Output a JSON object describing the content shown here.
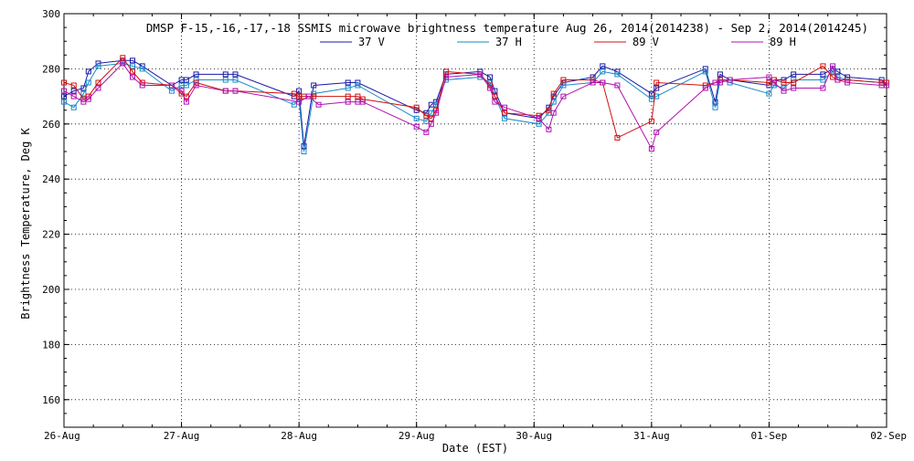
{
  "chart_data": {
    "type": "line",
    "title": "DMSP F-15,-16,-17,-18 SSMIS microwave brightness temperature Aug 26, 2014(2014238) - Sep  2, 2014(2014245)",
    "xlabel": "Date (EST)",
    "ylabel": "Brightness Temperature, Deg K",
    "xlim": [
      "2014-08-26T00:00",
      "2014-09-02T00:00"
    ],
    "ylim": [
      150,
      300
    ],
    "x_ticks": [
      "26-Aug",
      "27-Aug",
      "28-Aug",
      "29-Aug",
      "30-Aug",
      "31-Aug",
      "01-Sep",
      "02-Sep"
    ],
    "y_ticks": [
      160,
      180,
      200,
      220,
      240,
      260,
      280,
      300
    ],
    "grid": "dotted",
    "legend_position": "top-center",
    "series": [
      {
        "name": "37 V",
        "color": "#1a1aa6",
        "x": [
          "2014-08-26T00:00",
          "2014-08-26T02:00",
          "2014-08-26T04:00",
          "2014-08-26T05:00",
          "2014-08-26T07:00",
          "2014-08-26T12:00",
          "2014-08-26T14:00",
          "2014-08-26T16:00",
          "2014-08-26T22:00",
          "2014-08-27T00:00",
          "2014-08-27T01:00",
          "2014-08-27T03:00",
          "2014-08-27T09:00",
          "2014-08-27T11:00",
          "2014-08-27T23:00",
          "2014-08-28T00:00",
          "2014-08-28T01:00",
          "2014-08-28T03:00",
          "2014-08-28T10:00",
          "2014-08-28T12:00",
          "2014-08-29T00:00",
          "2014-08-29T02:00",
          "2014-08-29T03:00",
          "2014-08-29T04:00",
          "2014-08-29T06:00",
          "2014-08-29T13:00",
          "2014-08-29T15:00",
          "2014-08-29T16:00",
          "2014-08-29T18:00",
          "2014-08-30T01:00",
          "2014-08-30T03:00",
          "2014-08-30T04:00",
          "2014-08-30T06:00",
          "2014-08-30T12:00",
          "2014-08-30T14:00",
          "2014-08-30T17:00",
          "2014-08-31T00:00",
          "2014-08-31T01:00",
          "2014-08-31T11:00",
          "2014-08-31T13:00",
          "2014-08-31T14:00",
          "2014-08-31T16:00",
          "2014-09-01T00:00",
          "2014-09-01T01:00",
          "2014-09-01T03:00",
          "2014-09-01T05:00",
          "2014-09-01T11:00",
          "2014-09-01T13:00",
          "2014-09-01T14:00",
          "2014-09-01T16:00",
          "2014-09-01T23:00",
          "2014-09-02T00:00"
        ],
        "y": [
          270,
          272,
          273,
          279,
          282,
          283,
          283,
          281,
          274,
          276,
          276,
          278,
          278,
          278,
          270,
          272,
          252,
          274,
          275,
          275,
          265,
          264,
          267,
          268,
          278,
          279,
          277,
          272,
          264,
          262,
          266,
          270,
          275,
          277,
          281,
          279,
          271,
          273,
          280,
          268,
          278,
          276,
          274,
          276,
          276,
          278,
          278,
          280,
          279,
          277,
          276,
          274
        ]
      },
      {
        "name": "37 H",
        "color": "#1a8ac8",
        "x": [
          "2014-08-26T00:00",
          "2014-08-26T02:00",
          "2014-08-26T04:00",
          "2014-08-26T05:00",
          "2014-08-26T07:00",
          "2014-08-26T12:00",
          "2014-08-26T14:00",
          "2014-08-26T16:00",
          "2014-08-26T22:00",
          "2014-08-27T00:00",
          "2014-08-27T01:00",
          "2014-08-27T03:00",
          "2014-08-27T09:00",
          "2014-08-27T11:00",
          "2014-08-27T23:00",
          "2014-08-28T00:00",
          "2014-08-28T01:00",
          "2014-08-28T03:00",
          "2014-08-28T10:00",
          "2014-08-28T12:00",
          "2014-08-29T00:00",
          "2014-08-29T02:00",
          "2014-08-29T03:00",
          "2014-08-29T04:00",
          "2014-08-29T06:00",
          "2014-08-29T13:00",
          "2014-08-29T15:00",
          "2014-08-29T16:00",
          "2014-08-29T18:00",
          "2014-08-30T01:00",
          "2014-08-30T03:00",
          "2014-08-30T04:00",
          "2014-08-30T06:00",
          "2014-08-30T12:00",
          "2014-08-30T14:00",
          "2014-08-30T17:00",
          "2014-08-31T00:00",
          "2014-08-31T01:00",
          "2014-08-31T11:00",
          "2014-08-31T13:00",
          "2014-08-31T14:00",
          "2014-08-31T16:00",
          "2014-09-01T00:00",
          "2014-09-01T01:00",
          "2014-09-01T03:00",
          "2014-09-01T05:00",
          "2014-09-01T11:00",
          "2014-09-01T13:00",
          "2014-09-01T14:00",
          "2014-09-01T16:00",
          "2014-09-01T23:00",
          "2014-09-02T00:00"
        ],
        "y": [
          268,
          266,
          271,
          275,
          281,
          282,
          281,
          280,
          272,
          274,
          274,
          276,
          276,
          276,
          267,
          269,
          250,
          271,
          273,
          274,
          262,
          261,
          264,
          267,
          276,
          277,
          275,
          270,
          262,
          260,
          264,
          268,
          274,
          275,
          279,
          278,
          269,
          270,
          279,
          266,
          276,
          275,
          271,
          274,
          273,
          276,
          276,
          279,
          277,
          276,
          275,
          274
        ]
      },
      {
        "name": "89 V",
        "color": "#d01010",
        "x": [
          "2014-08-26T00:00",
          "2014-08-26T02:00",
          "2014-08-26T04:00",
          "2014-08-26T05:00",
          "2014-08-26T07:00",
          "2014-08-26T12:00",
          "2014-08-26T14:00",
          "2014-08-26T16:00",
          "2014-08-26T22:00",
          "2014-08-27T00:00",
          "2014-08-27T01:00",
          "2014-08-27T03:00",
          "2014-08-27T09:00",
          "2014-08-27T11:00",
          "2014-08-27T23:00",
          "2014-08-28T00:00",
          "2014-08-28T01:00",
          "2014-08-28T03:00",
          "2014-08-28T10:00",
          "2014-08-28T12:00",
          "2014-08-28T13:00",
          "2014-08-29T00:00",
          "2014-08-29T02:00",
          "2014-08-29T03:00",
          "2014-08-29T04:00",
          "2014-08-29T06:00",
          "2014-08-29T13:00",
          "2014-08-29T15:00",
          "2014-08-29T16:00",
          "2014-08-29T18:00",
          "2014-08-30T01:00",
          "2014-08-30T03:00",
          "2014-08-30T04:00",
          "2014-08-30T06:00",
          "2014-08-30T12:00",
          "2014-08-30T14:00",
          "2014-08-30T17:00",
          "2014-08-31T00:00",
          "2014-08-31T01:00",
          "2014-08-31T11:00",
          "2014-08-31T13:00",
          "2014-08-31T14:00",
          "2014-08-31T16:00",
          "2014-09-01T00:00",
          "2014-09-01T01:00",
          "2014-09-01T03:00",
          "2014-09-01T05:00",
          "2014-09-01T11:00",
          "2014-09-01T13:00",
          "2014-09-01T14:00",
          "2014-09-01T16:00",
          "2014-09-01T23:00",
          "2014-09-02T00:00"
        ],
        "y": [
          275,
          274,
          269,
          270,
          275,
          284,
          279,
          275,
          274,
          271,
          270,
          275,
          272,
          272,
          271,
          270,
          270,
          270,
          270,
          270,
          269,
          266,
          263,
          262,
          265,
          279,
          278,
          274,
          270,
          264,
          263,
          265,
          271,
          276,
          276,
          275,
          255,
          261,
          275,
          274,
          275,
          276,
          276,
          275,
          276,
          275,
          275,
          281,
          277,
          276,
          276,
          275,
          275
        ]
      },
      {
        "name": "89 H",
        "color": "#b010b0",
        "x": [
          "2014-08-26T00:00",
          "2014-08-26T02:00",
          "2014-08-26T04:00",
          "2014-08-26T05:00",
          "2014-08-26T07:00",
          "2014-08-26T12:00",
          "2014-08-26T14:00",
          "2014-08-26T16:00",
          "2014-08-26T22:00",
          "2014-08-27T00:00",
          "2014-08-27T01:00",
          "2014-08-27T03:00",
          "2014-08-27T09:00",
          "2014-08-27T11:00",
          "2014-08-28T00:00",
          "2014-08-28T02:00",
          "2014-08-28T04:00",
          "2014-08-28T10:00",
          "2014-08-28T12:00",
          "2014-08-28T13:00",
          "2014-08-29T00:00",
          "2014-08-29T02:00",
          "2014-08-29T03:00",
          "2014-08-29T04:00",
          "2014-08-29T06:00",
          "2014-08-29T13:00",
          "2014-08-29T15:00",
          "2014-08-29T16:00",
          "2014-08-29T18:00",
          "2014-08-30T01:00",
          "2014-08-30T03:00",
          "2014-08-30T04:00",
          "2014-08-30T06:00",
          "2014-08-30T12:00",
          "2014-08-30T14:00",
          "2014-08-30T17:00",
          "2014-08-31T00:00",
          "2014-08-31T01:00",
          "2014-08-31T11:00",
          "2014-08-31T13:00",
          "2014-08-31T14:00",
          "2014-08-31T16:00",
          "2014-09-01T00:00",
          "2014-09-01T01:00",
          "2014-09-01T03:00",
          "2014-09-01T05:00",
          "2014-09-01T11:00",
          "2014-09-01T13:00",
          "2014-09-01T14:00",
          "2014-09-01T16:00",
          "2014-09-01T23:00",
          "2014-09-02T00:00"
        ],
        "y": [
          272,
          270,
          268,
          269,
          273,
          282,
          277,
          274,
          274,
          272,
          268,
          274,
          272,
          272,
          268,
          270,
          267,
          268,
          268,
          268,
          259,
          257,
          260,
          264,
          277,
          278,
          273,
          268,
          266,
          262,
          258,
          264,
          270,
          275,
          275,
          274,
          251,
          257,
          273,
          275,
          275,
          276,
          277,
          275,
          272,
          273,
          273,
          281,
          276,
          275,
          274,
          274
        ]
      }
    ]
  }
}
